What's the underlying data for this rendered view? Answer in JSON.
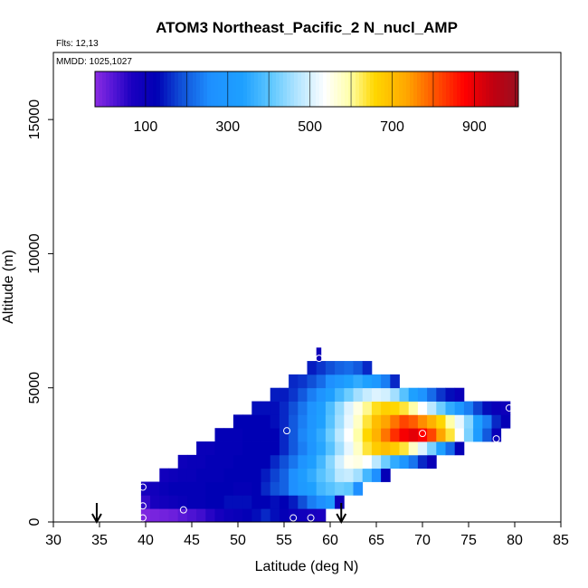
{
  "chart_data": {
    "type": "heatmap",
    "title": "ATOM3 Northeast_Pacific_2 N_nucl_AMP",
    "flights_label": "Flts: 12,13",
    "date_label": "MMDD: 1025,1027",
    "xlabel": "Latitude (deg N)",
    "ylabel": "Altitude (m)",
    "xlim": [
      30,
      85
    ],
    "ylim": [
      0,
      17500
    ],
    "x_ticks": [
      30,
      35,
      40,
      45,
      50,
      55,
      60,
      65,
      70,
      75,
      80,
      85
    ],
    "y_ticks": [
      0,
      5000,
      10000,
      15000
    ],
    "colorbar": {
      "min": 20,
      "max": 1050,
      "tick_values": [
        100,
        300,
        500,
        700,
        900
      ],
      "tick_labels": [
        "100",
        "300",
        "500",
        "700",
        "900"
      ],
      "stops": [
        {
          "v": 20,
          "c": "#8a2be2"
        },
        {
          "v": 60,
          "c": "#5a18d8"
        },
        {
          "v": 110,
          "c": "#1a00c0"
        },
        {
          "v": 170,
          "c": "#0000b4"
        },
        {
          "v": 230,
          "c": "#1050d8"
        },
        {
          "v": 300,
          "c": "#1e90ff"
        },
        {
          "v": 380,
          "c": "#1ea0ff"
        },
        {
          "v": 450,
          "c": "#60c8ff"
        },
        {
          "v": 510,
          "c": "#b0e4ff"
        },
        {
          "v": 580,
          "c": "#ffffff"
        },
        {
          "v": 640,
          "c": "#ffffaa"
        },
        {
          "v": 700,
          "c": "#ffd700"
        },
        {
          "v": 780,
          "c": "#ffa500"
        },
        {
          "v": 850,
          "c": "#ff5000"
        },
        {
          "v": 920,
          "c": "#ff0000"
        },
        {
          "v": 990,
          "c": "#c00010"
        },
        {
          "v": 1050,
          "c": "#9a1020"
        }
      ]
    },
    "grid": {
      "bin_width_deg": 1,
      "bin_height_m": 500
    },
    "rows": [
      {
        "alt": 250,
        "lat_start": 39.5,
        "lat_end": 59.5,
        "values": [
          30,
          35,
          40,
          45,
          60,
          70,
          80,
          100,
          120,
          140,
          150,
          160,
          180,
          200,
          180,
          160,
          140,
          130,
          120,
          110
        ]
      },
      {
        "alt": 750,
        "lat_start": 39.5,
        "lat_end": 61.5,
        "values": [
          90,
          120,
          130,
          140,
          150,
          160,
          160,
          170,
          170,
          180,
          180,
          180,
          170,
          170,
          180,
          170,
          190,
          230,
          280,
          300,
          350,
          140
        ]
      },
      {
        "alt": 1250,
        "lat_start": 39.5,
        "lat_end": 63.5,
        "values": [
          120,
          130,
          150,
          160,
          160,
          160,
          160,
          170,
          170,
          170,
          160,
          160,
          170,
          200,
          230,
          250,
          300,
          350,
          380,
          420,
          440,
          460,
          450,
          300
        ]
      },
      {
        "alt": 1750,
        "lat_start": 41.5,
        "lat_end": 66.5,
        "values": [
          130,
          140,
          150,
          150,
          160,
          160,
          160,
          170,
          170,
          170,
          170,
          190,
          220,
          250,
          300,
          360,
          400,
          440,
          470,
          520,
          530,
          500,
          420,
          300,
          160
        ]
      },
      {
        "alt": 2250,
        "lat_start": 43.5,
        "lat_end": 71.5,
        "values": [
          140,
          150,
          150,
          160,
          160,
          160,
          170,
          170,
          170,
          170,
          200,
          230,
          270,
          320,
          370,
          420,
          480,
          540,
          590,
          600,
          580,
          520,
          460,
          400,
          330,
          270,
          200,
          150
        ]
      },
      {
        "alt": 2750,
        "lat_start": 45.5,
        "lat_end": 74.5,
        "values": [
          150,
          150,
          160,
          160,
          160,
          170,
          170,
          170,
          170,
          200,
          240,
          280,
          330,
          390,
          440,
          500,
          560,
          620,
          680,
          720,
          740,
          720,
          680,
          620,
          550,
          470,
          380,
          260,
          160
        ]
      },
      {
        "alt": 3250,
        "lat_start": 47.5,
        "lat_end": 78.5,
        "values": [
          160,
          160,
          160,
          170,
          170,
          170,
          170,
          200,
          240,
          290,
          340,
          400,
          460,
          520,
          580,
          640,
          700,
          760,
          820,
          880,
          930,
          950,
          920,
          860,
          780,
          680,
          580,
          470,
          360,
          240,
          150
        ]
      },
      {
        "alt": 3750,
        "lat_start": 49.5,
        "lat_end": 79.5,
        "values": [
          170,
          170,
          170,
          170,
          180,
          200,
          240,
          280,
          330,
          380,
          440,
          500,
          560,
          620,
          680,
          740,
          780,
          820,
          860,
          840,
          800,
          760,
          700,
          640,
          560,
          480,
          380,
          280,
          200,
          160
        ]
      },
      {
        "alt": 4250,
        "lat_start": 51.5,
        "lat_end": 79.5,
        "values": [
          180,
          180,
          180,
          200,
          230,
          270,
          320,
          370,
          430,
          490,
          550,
          600,
          650,
          690,
          710,
          700,
          680,
          640,
          580,
          520,
          460,
          400,
          340,
          280,
          220,
          180,
          150,
          140
        ]
      },
      {
        "alt": 4750,
        "lat_start": 53.5,
        "lat_end": 74.5,
        "values": [
          190,
          190,
          210,
          240,
          280,
          320,
          370,
          420,
          460,
          500,
          530,
          550,
          540,
          500,
          440,
          380,
          320,
          260,
          210,
          180,
          150
        ]
      },
      {
        "alt": 5250,
        "lat_start": 55.5,
        "lat_end": 67.5,
        "values": [
          200,
          210,
          230,
          260,
          300,
          340,
          380,
          400,
          380,
          340,
          280,
          200
        ]
      },
      {
        "alt": 5750,
        "lat_start": 57.5,
        "lat_end": 64.5,
        "values": [
          190,
          210,
          230,
          250,
          260,
          240,
          200
        ]
      },
      {
        "alt": 6250,
        "lat_start": 58.5,
        "lat_end": 59.0,
        "values": [
          140
        ]
      }
    ],
    "markers": [
      {
        "lat": 39.7,
        "alt": 150
      },
      {
        "lat": 39.7,
        "alt": 600
      },
      {
        "lat": 39.7,
        "alt": 1300
      },
      {
        "lat": 44.1,
        "alt": 450
      },
      {
        "lat": 55.3,
        "alt": 3400
      },
      {
        "lat": 56.0,
        "alt": 150
      },
      {
        "lat": 57.9,
        "alt": 150
      },
      {
        "lat": 58.8,
        "alt": 6100
      },
      {
        "lat": 70.0,
        "alt": 3300
      },
      {
        "lat": 78.0,
        "alt": 3100
      },
      {
        "lat": 79.4,
        "alt": 4250
      }
    ],
    "arrows": [
      {
        "lat": 34.7
      },
      {
        "lat": 61.2
      }
    ]
  }
}
